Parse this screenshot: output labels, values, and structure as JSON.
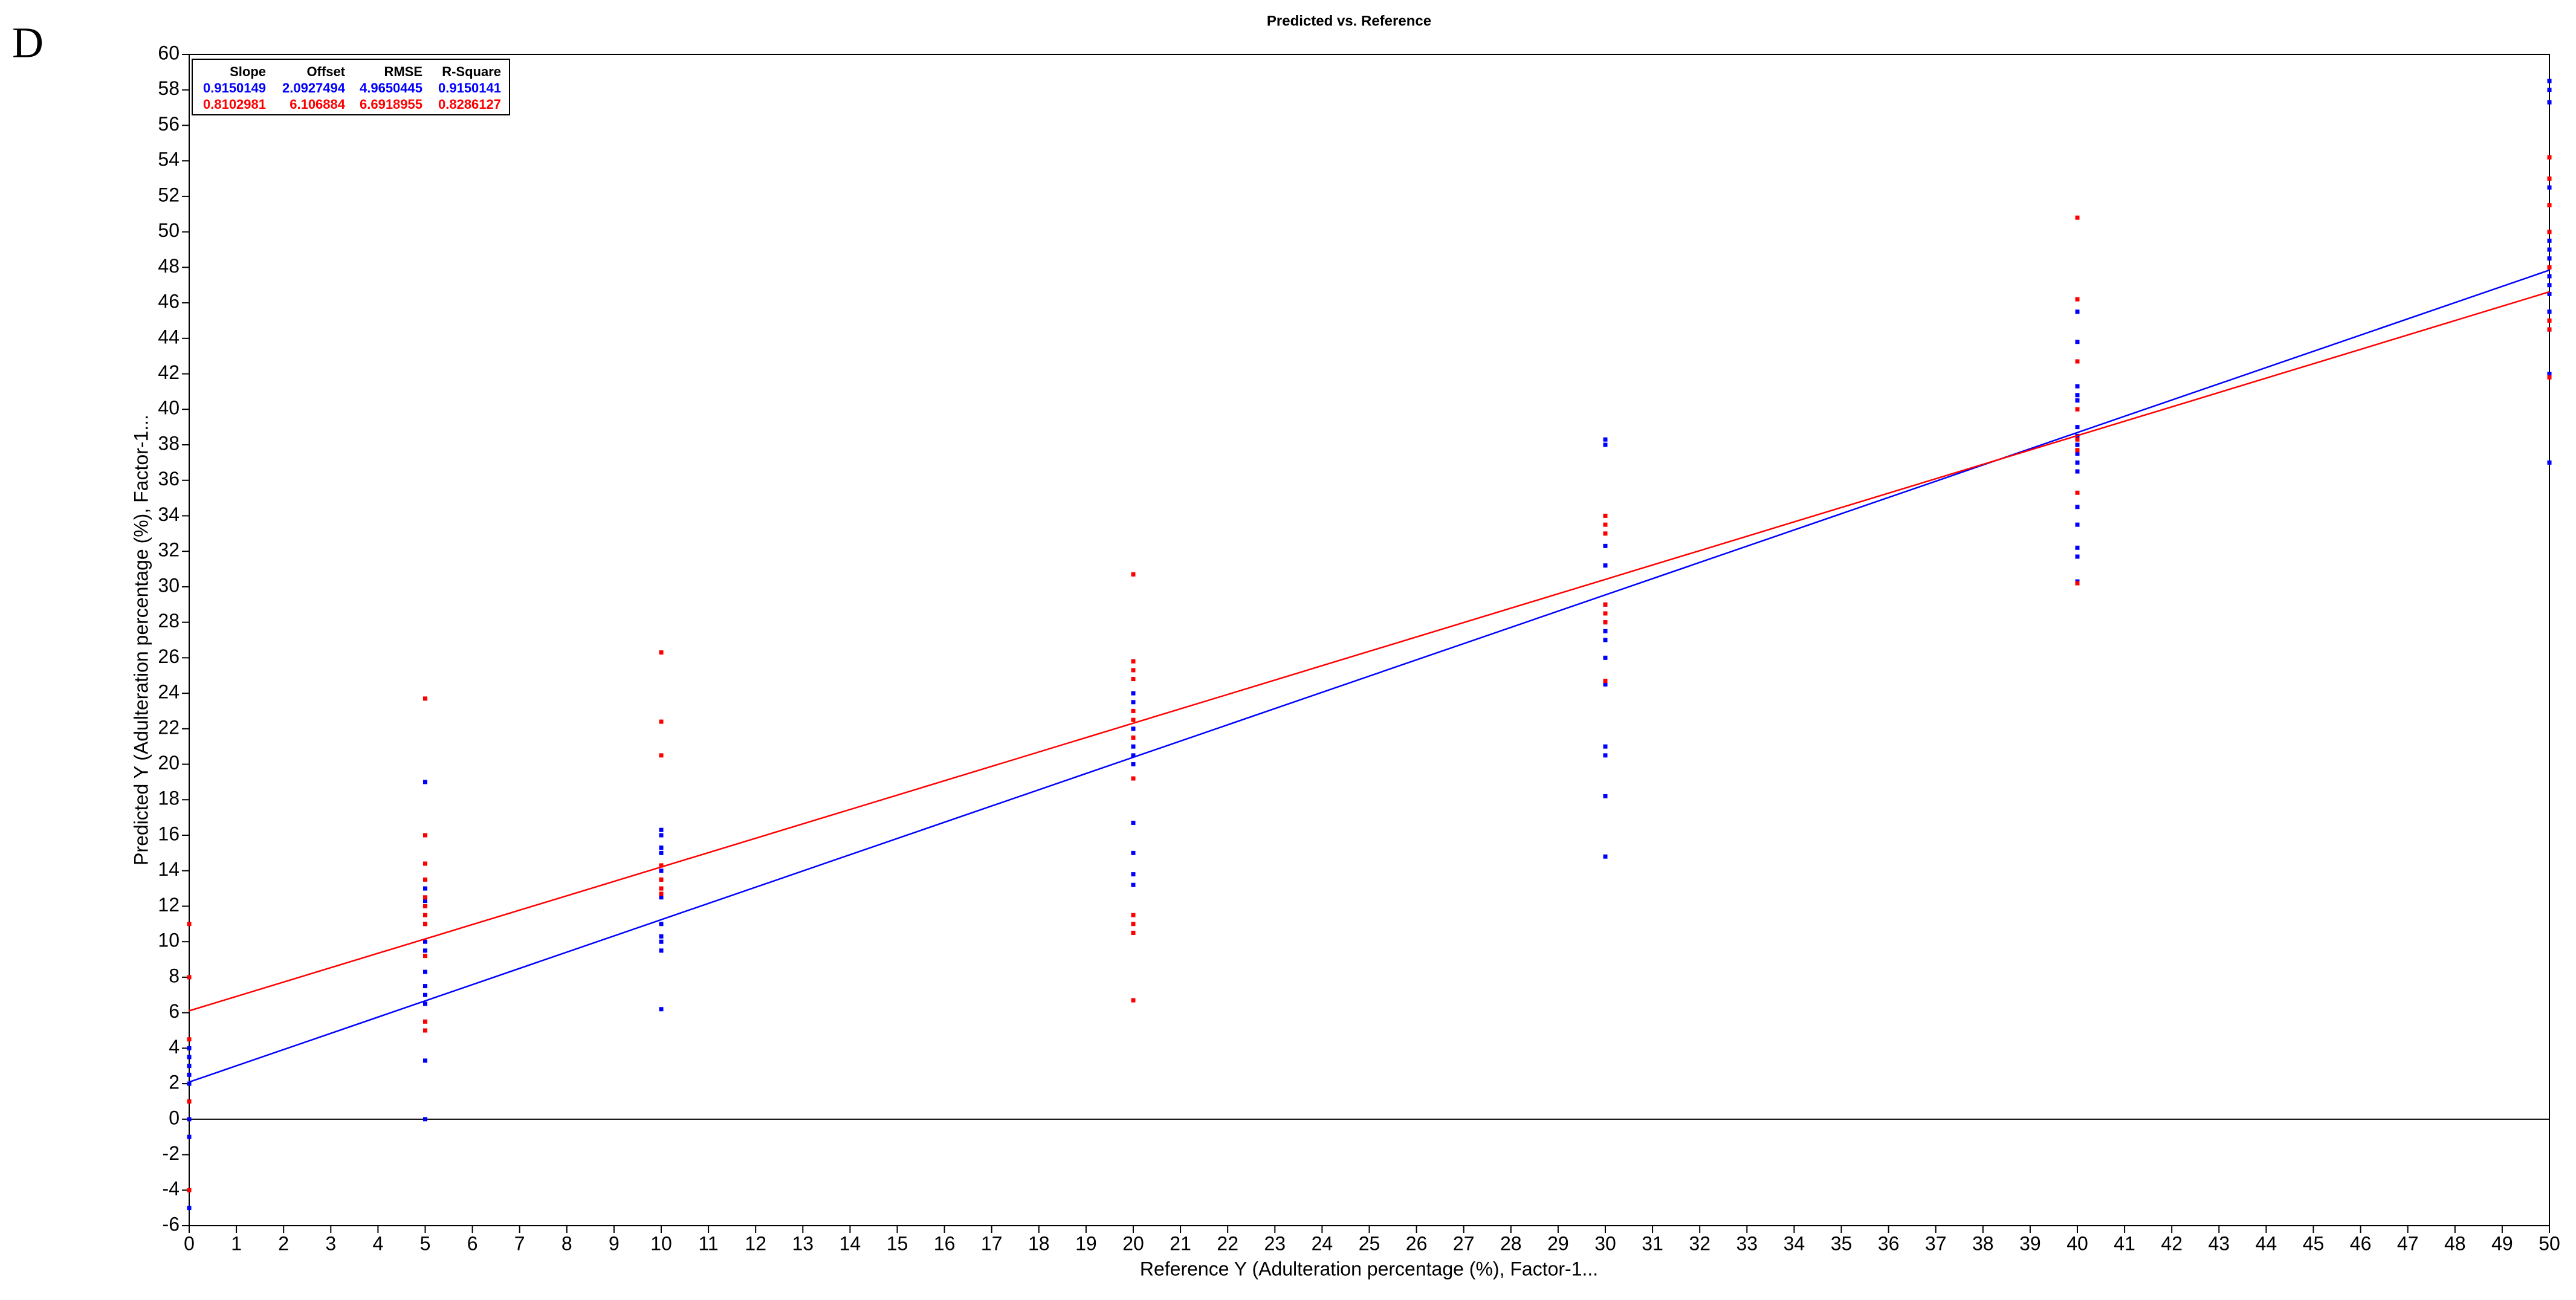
{
  "panel_label": "D",
  "chart_data": {
    "type": "scatter",
    "title": "Predicted vs. Reference",
    "x_label": "Reference Y (Adulteration percentage (%), Factor-1...",
    "y_label": "Predicted Y (Adulteration percentage (%), Factor-1...",
    "xlim": [
      0,
      50
    ],
    "ylim": [
      -6,
      60
    ],
    "xticks": [
      0,
      1,
      2,
      3,
      4,
      5,
      6,
      7,
      8,
      9,
      10,
      11,
      12,
      13,
      14,
      15,
      16,
      17,
      18,
      19,
      20,
      21,
      22,
      23,
      24,
      25,
      26,
      27,
      28,
      29,
      30,
      31,
      32,
      33,
      34,
      35,
      36,
      37,
      38,
      39,
      40,
      41,
      42,
      43,
      44,
      45,
      46,
      47,
      48,
      49,
      50
    ],
    "yticks": [
      -6,
      -4,
      -2,
      0,
      2,
      4,
      6,
      8,
      10,
      12,
      14,
      16,
      18,
      20,
      22,
      24,
      26,
      28,
      30,
      32,
      34,
      36,
      38,
      40,
      42,
      44,
      46,
      48,
      50,
      52,
      54,
      56,
      58,
      60
    ],
    "stats_columns": [
      "Slope",
      "Offset",
      "RMSE",
      "R-Square"
    ],
    "series": [
      {
        "color": "#0000ff",
        "x": [
          0,
          0,
          0,
          0,
          0,
          0,
          0,
          0,
          0,
          5,
          5,
          5,
          5,
          5,
          5,
          5,
          5,
          5,
          5,
          5,
          5,
          5,
          10,
          10,
          10,
          10,
          10,
          10,
          10,
          10,
          10,
          10,
          10,
          10,
          20,
          20,
          20,
          20,
          20,
          20,
          20,
          20,
          20,
          20,
          20,
          30,
          30,
          30,
          30,
          30,
          30,
          30,
          30,
          30,
          30,
          30,
          30,
          30,
          30,
          40,
          40,
          40,
          40,
          40,
          40,
          40,
          40,
          40,
          40,
          40,
          40,
          40,
          40,
          40,
          40,
          50,
          50,
          50,
          50,
          50,
          50,
          50,
          50,
          50,
          50,
          50,
          50,
          50,
          50,
          50,
          50,
          50
        ],
        "y": [
          4,
          3.5,
          3,
          2.5,
          2,
          1,
          0,
          -1,
          -5,
          19,
          13,
          12.3,
          11,
          10,
          9.5,
          8.3,
          7.5,
          7,
          6.5,
          5,
          3.3,
          0,
          16.3,
          16,
          15.3,
          15,
          14,
          13.5,
          12.5,
          11,
          10.3,
          10,
          9.5,
          6.2,
          24,
          23.5,
          23,
          22,
          21,
          20.5,
          20,
          16.7,
          15,
          13.8,
          13.2,
          38.3,
          38,
          32.3,
          31.2,
          29,
          28,
          27.5,
          27,
          26,
          24.5,
          21,
          20.5,
          18.2,
          14.8,
          45.5,
          43.8,
          41.3,
          40.8,
          40.5,
          39,
          38.5,
          38,
          37.5,
          37,
          36.5,
          34.5,
          33.5,
          32.2,
          31.7,
          30.3,
          58.5,
          58,
          57.3,
          53,
          52.5,
          50,
          49.5,
          49,
          48.5,
          48,
          47.5,
          47,
          46.5,
          45.5,
          44.5,
          42,
          37
        ],
        "fit": {
          "slope": 0.9150149,
          "offset": 2.0927494,
          "rmse": 4.9650445,
          "r2": 0.9150141
        }
      },
      {
        "color": "#ff0000",
        "x": [
          0,
          0,
          0,
          0,
          0,
          5,
          5,
          5,
          5,
          5,
          5,
          5,
          5,
          5,
          5,
          5,
          10,
          10,
          10,
          10,
          10,
          10,
          10,
          20,
          20,
          20,
          20,
          20,
          20,
          20,
          20,
          20,
          20,
          20,
          20,
          30,
          30,
          30,
          30,
          30,
          30,
          30,
          40,
          40,
          40,
          40,
          40,
          40,
          40,
          40,
          50,
          50,
          50,
          50,
          50,
          50,
          50,
          50
        ],
        "y": [
          11,
          8,
          4.5,
          1,
          -4,
          23.7,
          16,
          14.4,
          13.5,
          12.5,
          12,
          11.5,
          11,
          9.2,
          5.5,
          5,
          26.3,
          22.4,
          20.5,
          14.3,
          13.5,
          13,
          12.7,
          30.7,
          25.8,
          25.3,
          24.8,
          23,
          22.5,
          21.5,
          19.2,
          11.5,
          11,
          10.5,
          6.7,
          34,
          33.5,
          33,
          29,
          28.5,
          28,
          24.7,
          50.8,
          46.2,
          42.7,
          40,
          38.3,
          37.7,
          35.3,
          30.2,
          54.2,
          53,
          51.5,
          50,
          48,
          45,
          44.5,
          41.8
        ],
        "fit": {
          "slope": 0.8102981,
          "offset": 6.106884,
          "rmse": 6.6918955,
          "r2": 0.8286127
        }
      }
    ]
  }
}
